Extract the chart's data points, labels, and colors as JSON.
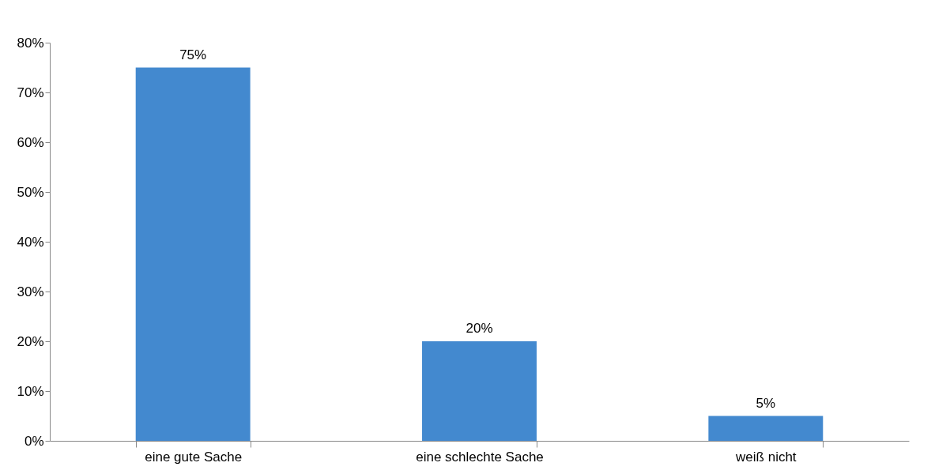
{
  "chart_data": {
    "type": "bar",
    "categories": [
      "eine gute Sache",
      "eine schlechte Sache",
      "weiß nicht"
    ],
    "values": [
      75,
      20,
      5
    ],
    "color": "#4389cf",
    "value_labels": [
      "75%",
      "20%",
      "5%"
    ],
    "ylim": [
      0,
      80
    ],
    "yticks": [
      {
        "value": 0,
        "label": "0%"
      },
      {
        "value": 10,
        "label": "10%"
      },
      {
        "value": 20,
        "label": "20%"
      },
      {
        "value": 30,
        "label": "30%"
      },
      {
        "value": 40,
        "label": "40%"
      },
      {
        "value": 50,
        "label": "50%"
      },
      {
        "value": 60,
        "label": "60%"
      },
      {
        "value": 70,
        "label": "70%"
      },
      {
        "value": 80,
        "label": "80%"
      }
    ],
    "grid": false
  }
}
